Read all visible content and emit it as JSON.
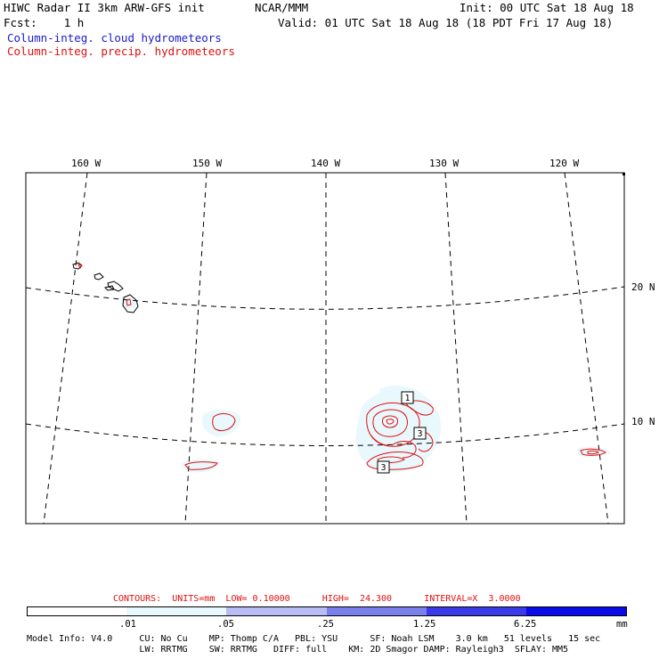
{
  "header": {
    "title": "HIWC Radar II 3km ARW-GFS init",
    "org": "NCAR/MMM",
    "init": "Init: 00 UTC Sat 18 Aug 18",
    "fcst": "Fcst:    1 h",
    "valid": "Valid: 01 UTC Sat 18 Aug 18 (18 PDT Fri 17 Aug 18)",
    "field1": "Column-integ. cloud hydrometeors",
    "field2": "Column-integ. precip. hydrometeors"
  },
  "map": {
    "lon_labels": [
      "160 W",
      "150 W",
      "140 W",
      "130 W",
      "120 W"
    ],
    "lat_labels": [
      "20 N",
      "10 N"
    ],
    "contour_labels": [
      "1",
      "3",
      "3"
    ],
    "colors": {
      "cloud_light": "#e8f8fc",
      "precip_contour": "#e01010",
      "coast": "#000000",
      "grid": "#000000"
    }
  },
  "contours_info": {
    "text": "CONTOURS:  UNITS=mm  LOW= 0.10000      HIGH=  24.300      INTERVAL=X  3.0000"
  },
  "colorbar": {
    "unit": "mm",
    "tick_labels": [
      ".01",
      ".05",
      ".25",
      "1.25",
      "6.25"
    ],
    "colors": [
      "#ffffff",
      "#e8f8fc",
      "#b7bdf2",
      "#7b81ec",
      "#3a3ae8",
      "#0b0bea"
    ]
  },
  "model_info": {
    "line1": "Model Info: V4.0     CU: No Cu    MP: Thomp C/A   PBL: YSU      SF: Noah LSM    3.0 km   51 levels   15 sec",
    "line2": "                     LW: RRTMG    SW: RRTMG   DIFF: full    KM: 2D Smagor DAMP: Rayleigh3  SFLAY: MM5"
  }
}
